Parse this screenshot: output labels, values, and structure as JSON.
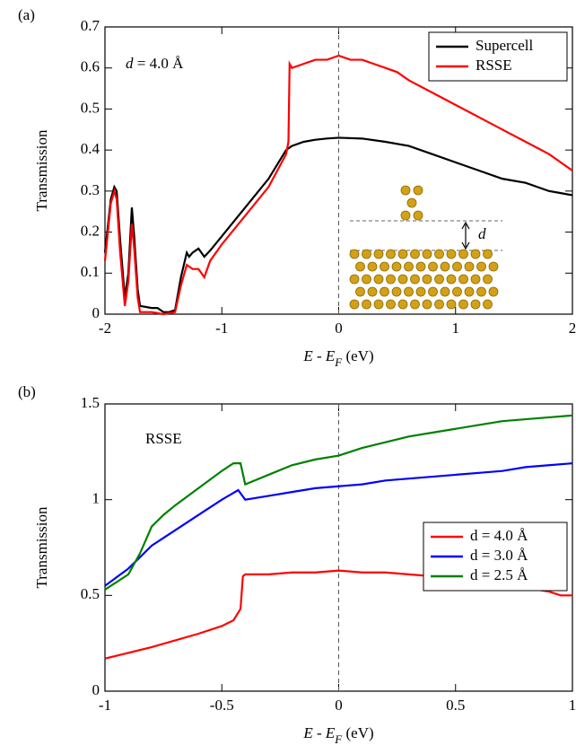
{
  "chart_data": [
    {
      "type": "line",
      "panel_label": "(a)",
      "annotation": [
        "d",
        " = 4.0 Å"
      ],
      "xlabel": [
        "E",
        " - ",
        "E",
        "F",
        " (eV)"
      ],
      "ylabel": "Transmission",
      "inset_label": "d",
      "xlim": [
        -2,
        2
      ],
      "xticks": [
        -2,
        -1,
        0,
        1,
        2
      ],
      "ylim": [
        0,
        0.7
      ],
      "yticks": [
        0,
        0.1,
        0.2,
        0.3,
        0.4,
        0.5,
        0.6,
        0.7
      ],
      "vline": 0,
      "legend": "upper right",
      "series": [
        {
          "name": "Supercell",
          "color": "#000000",
          "x": [
            -2,
            -1.95,
            -1.92,
            -1.9,
            -1.87,
            -1.83,
            -1.8,
            -1.77,
            -1.75,
            -1.72,
            -1.7,
            -1.6,
            -1.55,
            -1.5,
            -1.45,
            -1.4,
            -1.35,
            -1.3,
            -1.28,
            -1.25,
            -1.2,
            -1.15,
            -1.1,
            -1.0,
            -0.8,
            -0.6,
            -0.45,
            -0.4,
            -0.3,
            -0.2,
            -0.1,
            0,
            0.2,
            0.4,
            0.6,
            0.8,
            1.0,
            1.2,
            1.4,
            1.6,
            1.8,
            1.9,
            2.0
          ],
          "values": [
            0.15,
            0.28,
            0.31,
            0.3,
            0.18,
            0.04,
            0.1,
            0.26,
            0.19,
            0.06,
            0.02,
            0.015,
            0.015,
            0.005,
            0.005,
            0.01,
            0.09,
            0.15,
            0.14,
            0.15,
            0.16,
            0.14,
            0.155,
            0.19,
            0.26,
            0.33,
            0.4,
            0.41,
            0.42,
            0.425,
            0.428,
            0.43,
            0.428,
            0.42,
            0.41,
            0.39,
            0.37,
            0.35,
            0.33,
            0.32,
            0.3,
            0.295,
            0.29
          ]
        },
        {
          "name": "RSSE",
          "color": "#ff0000",
          "x": [
            -2,
            -1.95,
            -1.92,
            -1.9,
            -1.87,
            -1.83,
            -1.8,
            -1.77,
            -1.75,
            -1.72,
            -1.7,
            -1.6,
            -1.5,
            -1.4,
            -1.35,
            -1.3,
            -1.25,
            -1.2,
            -1.15,
            -1.1,
            -1.0,
            -0.8,
            -0.6,
            -0.45,
            -0.43,
            -0.42,
            -0.4,
            -0.3,
            -0.2,
            -0.1,
            0,
            0.1,
            0.2,
            0.3,
            0.4,
            0.5,
            0.6,
            0.8,
            1.0,
            1.2,
            1.4,
            1.6,
            1.8,
            1.9,
            2.0
          ],
          "values": [
            0.13,
            0.27,
            0.3,
            0.28,
            0.15,
            0.02,
            0.08,
            0.22,
            0.16,
            0.04,
            0.005,
            0.005,
            0,
            0.005,
            0.07,
            0.12,
            0.11,
            0.11,
            0.09,
            0.13,
            0.17,
            0.24,
            0.31,
            0.39,
            0.42,
            0.61,
            0.6,
            0.61,
            0.62,
            0.62,
            0.63,
            0.62,
            0.62,
            0.61,
            0.6,
            0.59,
            0.57,
            0.54,
            0.51,
            0.48,
            0.45,
            0.42,
            0.39,
            0.37,
            0.35
          ]
        }
      ]
    },
    {
      "type": "line",
      "panel_label": "(b)",
      "annotation": [
        "RSSE"
      ],
      "xlabel": [
        "E",
        " - ",
        "E",
        "F",
        " (eV)"
      ],
      "ylabel": "Transmission",
      "xlim": [
        -1,
        1
      ],
      "xticks": [
        -1,
        -0.5,
        0,
        0.5,
        1
      ],
      "ylim": [
        0,
        1.5
      ],
      "yticks": [
        0,
        0.5,
        1,
        1.5
      ],
      "vline": 0,
      "legend": "center right",
      "series": [
        {
          "name": "d = 4.0 Å",
          "color": "#ff0000",
          "x": [
            -1,
            -0.8,
            -0.6,
            -0.5,
            -0.45,
            -0.42,
            -0.41,
            -0.4,
            -0.3,
            -0.2,
            -0.1,
            0,
            0.1,
            0.2,
            0.3,
            0.4,
            0.5,
            0.6,
            0.7,
            0.8,
            0.9,
            0.95,
            1.0
          ],
          "values": [
            0.17,
            0.23,
            0.3,
            0.34,
            0.37,
            0.43,
            0.6,
            0.61,
            0.61,
            0.62,
            0.62,
            0.63,
            0.62,
            0.62,
            0.61,
            0.6,
            0.58,
            0.57,
            0.56,
            0.54,
            0.52,
            0.5,
            0.5
          ]
        },
        {
          "name": "d = 3.0 Å",
          "color": "#0000ff",
          "x": [
            -1,
            -0.9,
            -0.85,
            -0.8,
            -0.7,
            -0.6,
            -0.5,
            -0.43,
            -0.4,
            -0.3,
            -0.2,
            -0.1,
            0,
            0.1,
            0.2,
            0.3,
            0.4,
            0.5,
            0.6,
            0.7,
            0.8,
            0.9,
            1.0
          ],
          "values": [
            0.55,
            0.64,
            0.7,
            0.76,
            0.84,
            0.92,
            1.0,
            1.05,
            1.0,
            1.02,
            1.04,
            1.06,
            1.07,
            1.08,
            1.1,
            1.11,
            1.12,
            1.13,
            1.14,
            1.15,
            1.17,
            1.18,
            1.19
          ]
        },
        {
          "name": "d = 2.5 Å",
          "color": "#008000",
          "x": [
            -1,
            -0.9,
            -0.85,
            -0.8,
            -0.75,
            -0.7,
            -0.6,
            -0.5,
            -0.45,
            -0.42,
            -0.4,
            -0.3,
            -0.2,
            -0.1,
            0,
            0.1,
            0.2,
            0.3,
            0.4,
            0.5,
            0.6,
            0.7,
            0.8,
            0.9,
            1.0
          ],
          "values": [
            0.53,
            0.61,
            0.72,
            0.86,
            0.92,
            0.97,
            1.06,
            1.15,
            1.19,
            1.19,
            1.08,
            1.13,
            1.18,
            1.21,
            1.23,
            1.27,
            1.3,
            1.33,
            1.35,
            1.37,
            1.39,
            1.41,
            1.42,
            1.43,
            1.44
          ]
        }
      ]
    }
  ]
}
